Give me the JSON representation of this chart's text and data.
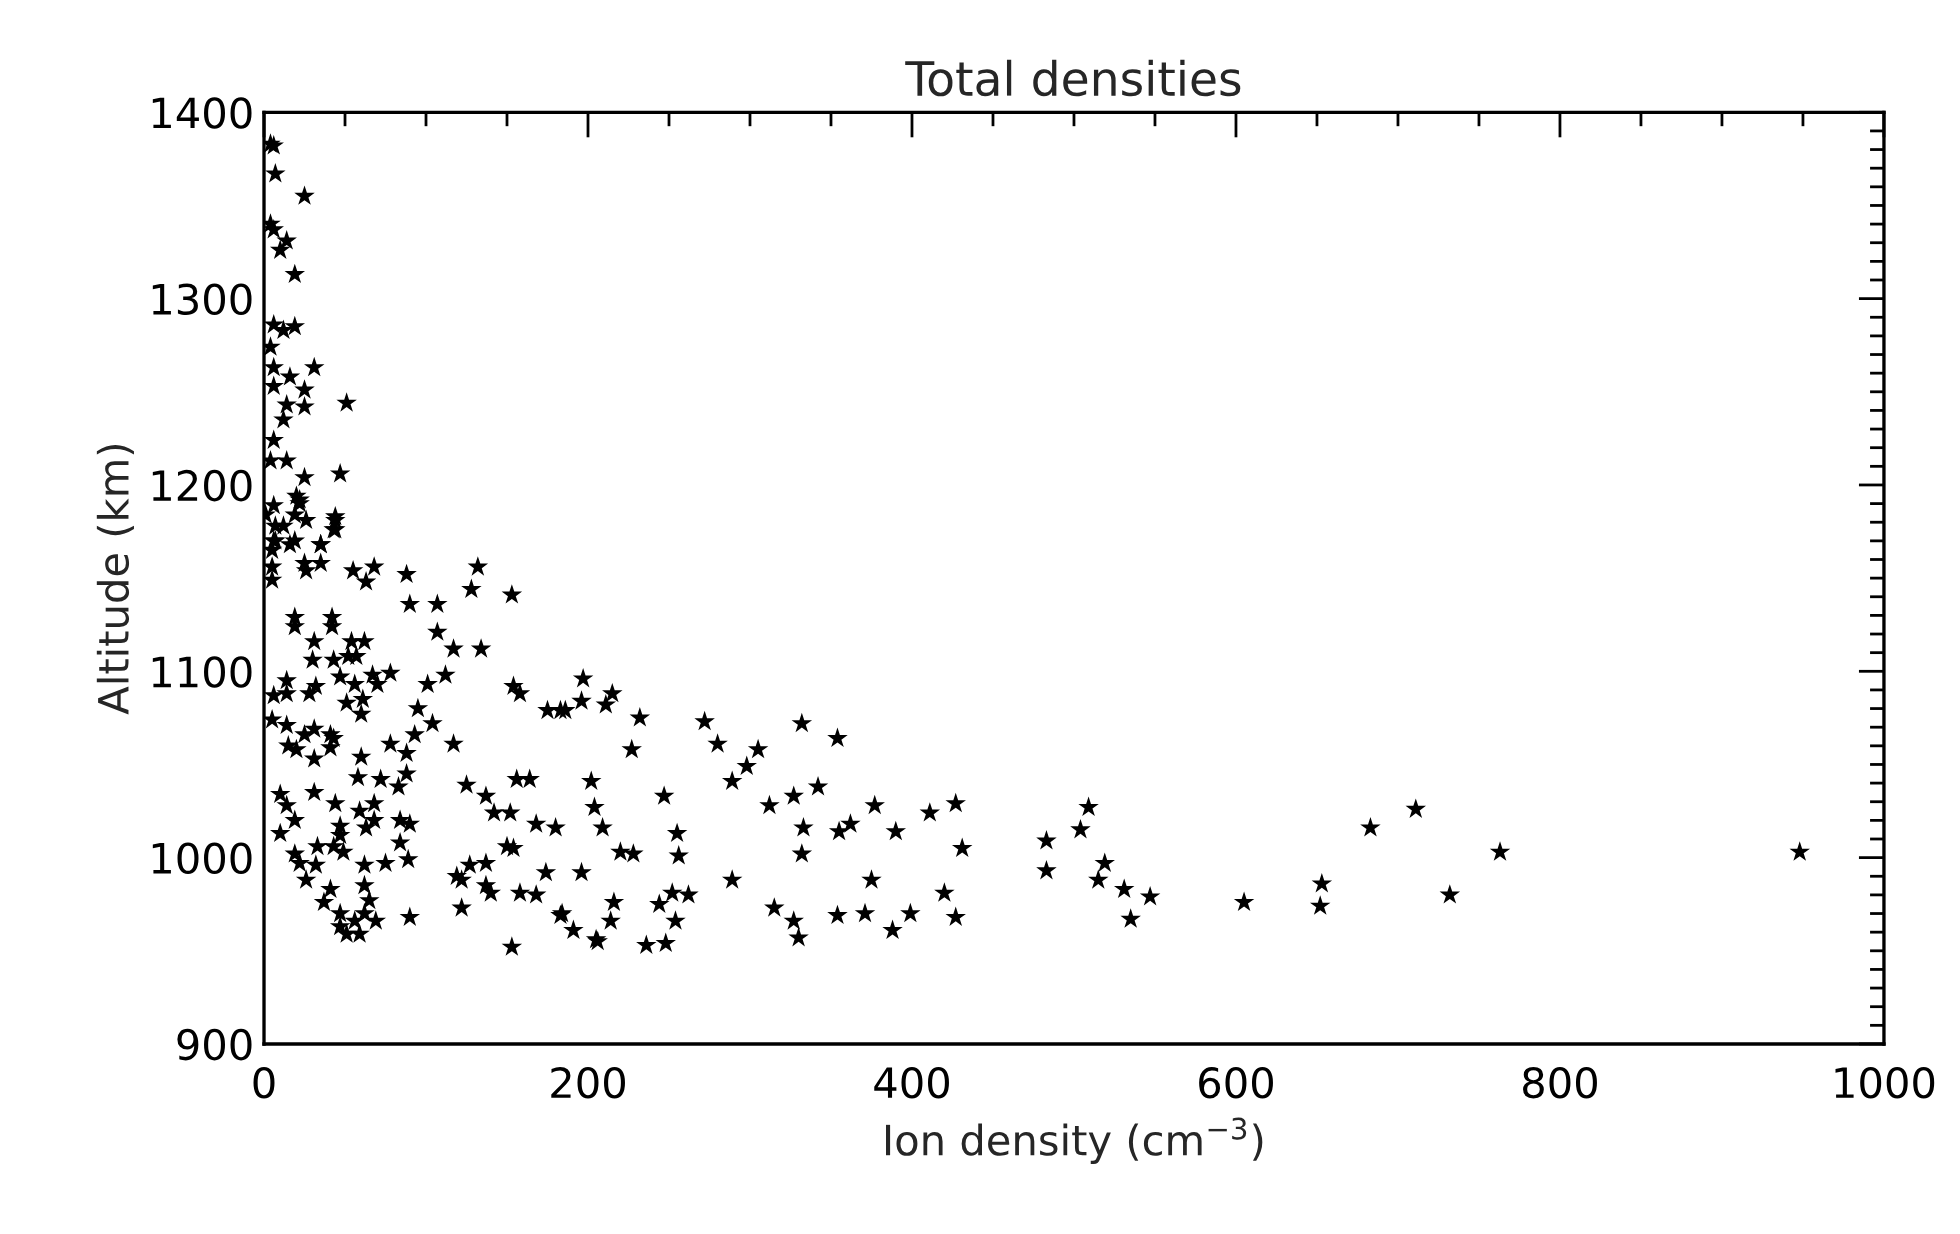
{
  "chart_data": {
    "type": "scatter",
    "title": "Total densities",
    "xlabel": "Ion density (cm$^{−3}$)",
    "ylabel": "Altitude (km)",
    "xlim": [
      0,
      1000
    ],
    "xticks": [
      0,
      200,
      400,
      600,
      800,
      1000
    ],
    "ylim": [
      900,
      1400
    ],
    "yticks": [
      900,
      1000,
      1100,
      1200,
      1300,
      1400
    ],
    "marker": "star",
    "grid": false,
    "series": [
      {
        "color": "#000000",
        "x": [
          948,
          605,
          652,
          653,
          683,
          711,
          732,
          763,
          547,
          535,
          531,
          519,
          515,
          509,
          504,
          483,
          483,
          427,
          431,
          427,
          420,
          411,
          399,
          390,
          388,
          377,
          375,
          371,
          362,
          355,
          354,
          354,
          342,
          333,
          332,
          332,
          327,
          327,
          330,
          315,
          312,
          305,
          298,
          289,
          289,
          280,
          272,
          262,
          256,
          255,
          254,
          252,
          244,
          248,
          236,
          247,
          232,
          227,
          228,
          220,
          216,
          214,
          206,
          191,
          184,
          196,
          209,
          204,
          202,
          215,
          211,
          197,
          196,
          186,
          132,
          128,
          153,
          88,
          90,
          107,
          107,
          117,
          134,
          68,
          63,
          55,
          44,
          44,
          35,
          25,
          35,
          26,
          19,
          19,
          42,
          42,
          31,
          54,
          62,
          52,
          57,
          30,
          43,
          47,
          67,
          78,
          70,
          56,
          32,
          28,
          61,
          51,
          60,
          14,
          14,
          6,
          5,
          14,
          25,
          15,
          20,
          31,
          41,
          41,
          43,
          31,
          60,
          58,
          78,
          88,
          93,
          104,
          95,
          101,
          112,
          117,
          88,
          83,
          72,
          68,
          59,
          68,
          63,
          44,
          47,
          47,
          43,
          49,
          31,
          19,
          10,
          14,
          19,
          22,
          26,
          32,
          33,
          62,
          75,
          84,
          89,
          84,
          90,
          37,
          41,
          47,
          47,
          51,
          56,
          62,
          62,
          65,
          69,
          59,
          90,
          10,
          5,
          5,
          5,
          7,
          16,
          12,
          19,
          22,
          1,
          183,
          175,
          158,
          154,
          125,
          137,
          142,
          152,
          156,
          164,
          168,
          180,
          174,
          154,
          150,
          137,
          127,
          119,
          122,
          137,
          140,
          158,
          168,
          183,
          205,
          153,
          122,
          4,
          6,
          7,
          25,
          4,
          6,
          14,
          10,
          19,
          19,
          6,
          12,
          4,
          6,
          31,
          16,
          25,
          25,
          14,
          51,
          6,
          12,
          6,
          4,
          14,
          47,
          25,
          20,
          22,
          6,
          44,
          43,
          26,
          7,
          6,
          19,
          35
        ],
        "values": [
          1003,
          976,
          974,
          986,
          1016,
          1026,
          980,
          1003,
          979,
          967,
          983,
          997,
          988,
          1027,
          1015,
          1009,
          993,
          1029,
          1005,
          968,
          981,
          1024,
          970,
          1014,
          961,
          1028,
          988,
          970,
          1018,
          1014,
          1064,
          969,
          1038,
          1016,
          1002,
          1072,
          1033,
          966,
          957,
          973,
          1028,
          1058,
          1049,
          1041,
          988,
          1061,
          1073,
          980,
          1001,
          1013,
          966,
          981,
          975,
          954,
          953,
          1033,
          1075,
          1058,
          1002,
          1003,
          976,
          966,
          955,
          961,
          970,
          992,
          1016,
          1027,
          1041,
          1088,
          1082,
          1096,
          1084,
          1079,
          1156,
          1144,
          1141,
          1152,
          1136,
          1136,
          1121,
          1112,
          1112,
          1156,
          1148,
          1154,
          1181,
          1176,
          1168,
          1158,
          1158,
          1154,
          1129,
          1124,
          1129,
          1124,
          1116,
          1116,
          1116,
          1108,
          1108,
          1106,
          1106,
          1097,
          1098,
          1099,
          1093,
          1093,
          1092,
          1088,
          1085,
          1083,
          1077,
          1088,
          1095,
          1087,
          1074,
          1071,
          1066,
          1060,
          1058,
          1069,
          1066,
          1059,
          1064,
          1053,
          1054,
          1043,
          1061,
          1056,
          1066,
          1072,
          1080,
          1093,
          1098,
          1061,
          1045,
          1038,
          1042,
          1029,
          1025,
          1020,
          1016,
          1029,
          1012,
          1017,
          1006,
          1003,
          1035,
          1020,
          1034,
          1028,
          1002,
          997,
          988,
          996,
          1006,
          996,
          997,
          1008,
          999,
          1020,
          1018,
          976,
          983,
          970,
          963,
          959,
          966,
          970,
          985,
          977,
          966,
          959,
          968,
          1013,
          1149,
          1156,
          1165,
          1170,
          1168,
          1178,
          1184,
          1190,
          1184,
          1079,
          1079,
          1088,
          1092,
          1039,
          1033,
          1024,
          1024,
          1042,
          1042,
          1018,
          1016,
          992,
          1005,
          1006,
          997,
          996,
          990,
          988,
          985,
          981,
          981,
          980,
          969,
          956,
          952,
          973,
          1383,
          1382,
          1367,
          1355,
          1340,
          1337,
          1331,
          1326,
          1313,
          1285,
          1286,
          1283,
          1274,
          1263,
          1263,
          1258,
          1251,
          1242,
          1243,
          1244,
          1253,
          1235,
          1224,
          1213,
          1213,
          1206,
          1204,
          1194,
          1192,
          1189,
          1183,
          1176,
          1181,
          1178,
          1170,
          1170,
          1168
        ]
      }
    ]
  }
}
